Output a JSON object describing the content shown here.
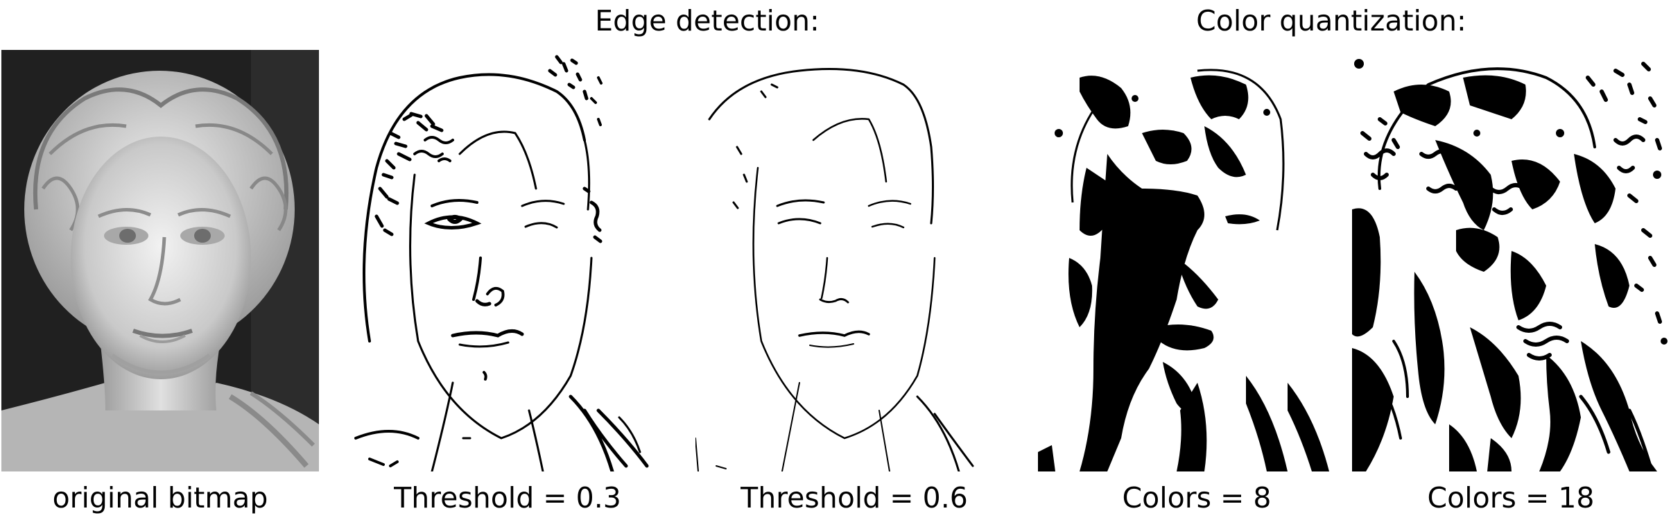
{
  "headings": {
    "edge_detection": "Edge detection:",
    "color_quantization": "Color quantization:"
  },
  "panels": [
    {
      "id": "original",
      "caption": "original bitmap"
    },
    {
      "id": "edge-03",
      "caption": "Threshold = 0.3"
    },
    {
      "id": "edge-06",
      "caption": "Threshold = 0.6"
    },
    {
      "id": "quant-8",
      "caption": "Colors = 8"
    },
    {
      "id": "quant-18",
      "caption": "Colors = 18"
    }
  ]
}
